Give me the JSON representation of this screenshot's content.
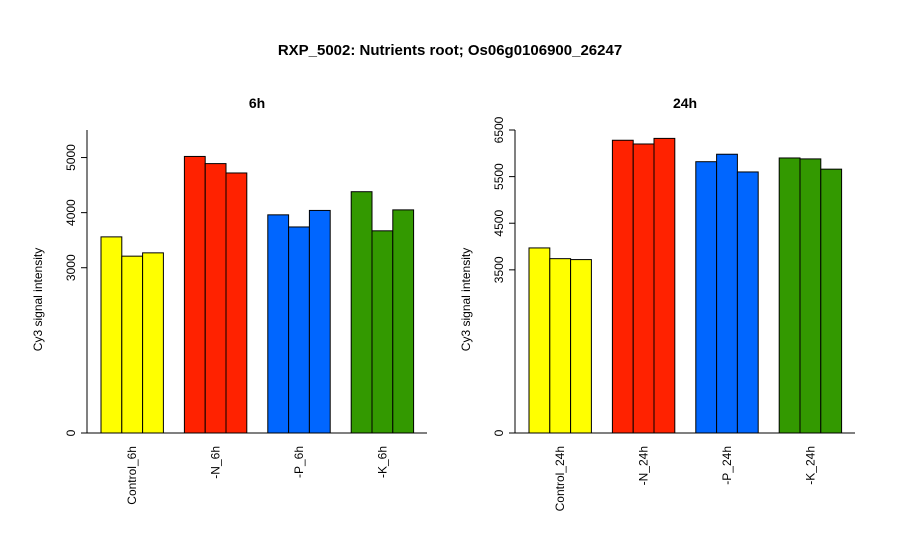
{
  "figure": {
    "title": "RXP_5002: Nutrients root; Os06g0106900_26247"
  },
  "chart_data": [
    {
      "type": "bar",
      "title": "6h",
      "xlabel": "",
      "ylabel": "Cy3 signal intensity",
      "ylim": [
        0,
        5500
      ],
      "yticks": [
        0,
        3000,
        4000,
        5000
      ],
      "groups": [
        {
          "name": "Control_6h",
          "color": "#ffff00",
          "values": [
            3560,
            3210,
            3270
          ]
        },
        {
          "name": "-N_6h",
          "color": "#ff2200",
          "values": [
            5020,
            4890,
            4720
          ]
        },
        {
          "name": "-P_6h",
          "color": "#0066ff",
          "values": [
            3960,
            3740,
            4040
          ]
        },
        {
          "name": "-K_6h",
          "color": "#339900",
          "values": [
            4380,
            3670,
            4050
          ]
        }
      ]
    },
    {
      "type": "bar",
      "title": "24h",
      "xlabel": "",
      "ylabel": "Cy3 signal intensity",
      "ylim": [
        0,
        6500
      ],
      "yticks": [
        0,
        3500,
        4500,
        5500,
        6500
      ],
      "groups": [
        {
          "name": "Control_24h",
          "color": "#ffff00",
          "values": [
            3970,
            3740,
            3720
          ]
        },
        {
          "name": "-N_24h",
          "color": "#ff2200",
          "values": [
            6280,
            6200,
            6320
          ]
        },
        {
          "name": "-P_24h",
          "color": "#0066ff",
          "values": [
            5820,
            5980,
            5600
          ]
        },
        {
          "name": "-K_24h",
          "color": "#339900",
          "values": [
            5900,
            5880,
            5660
          ]
        }
      ]
    }
  ]
}
